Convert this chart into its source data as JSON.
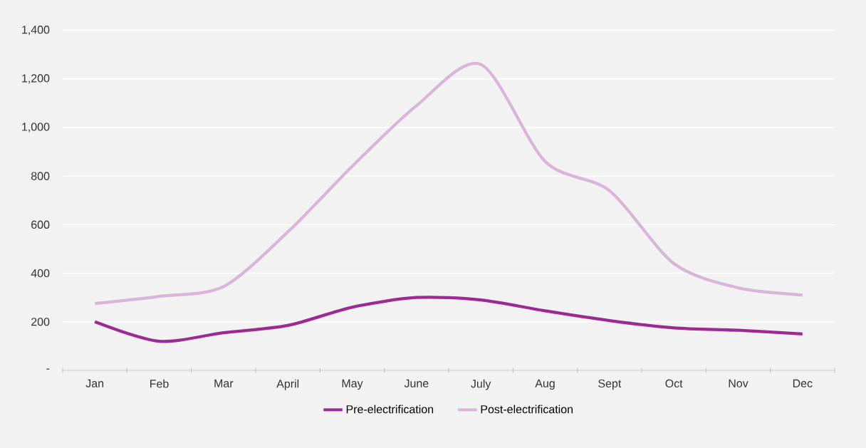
{
  "chart_data": {
    "type": "line",
    "categories": [
      "Jan",
      "Feb",
      "Mar",
      "April",
      "May",
      "June",
      "July",
      "Aug",
      "Sept",
      "Oct",
      "Nov",
      "Dec"
    ],
    "series": [
      {
        "name": "Pre-electrification",
        "color": "#9c2a92",
        "values": [
          200,
          120,
          155,
          185,
          260,
          300,
          290,
          245,
          205,
          175,
          165,
          150
        ]
      },
      {
        "name": "Post-electrification",
        "color": "#d8b5d9",
        "values": [
          275,
          305,
          345,
          570,
          840,
          1090,
          1260,
          860,
          740,
          440,
          340,
          310
        ]
      }
    ],
    "ylim": [
      0,
      1400
    ],
    "yticks": [
      {
        "value": 0,
        "label": "-"
      },
      {
        "value": 200,
        "label": "200"
      },
      {
        "value": 400,
        "label": "400"
      },
      {
        "value": 600,
        "label": "600"
      },
      {
        "value": 800,
        "label": "800"
      },
      {
        "value": 1000,
        "label": "1,000"
      },
      {
        "value": 1200,
        "label": "1,200"
      },
      {
        "value": 1400,
        "label": "1,400"
      }
    ],
    "grid": "y",
    "legend": "bottom",
    "marker": "none",
    "line_style": "solid"
  }
}
